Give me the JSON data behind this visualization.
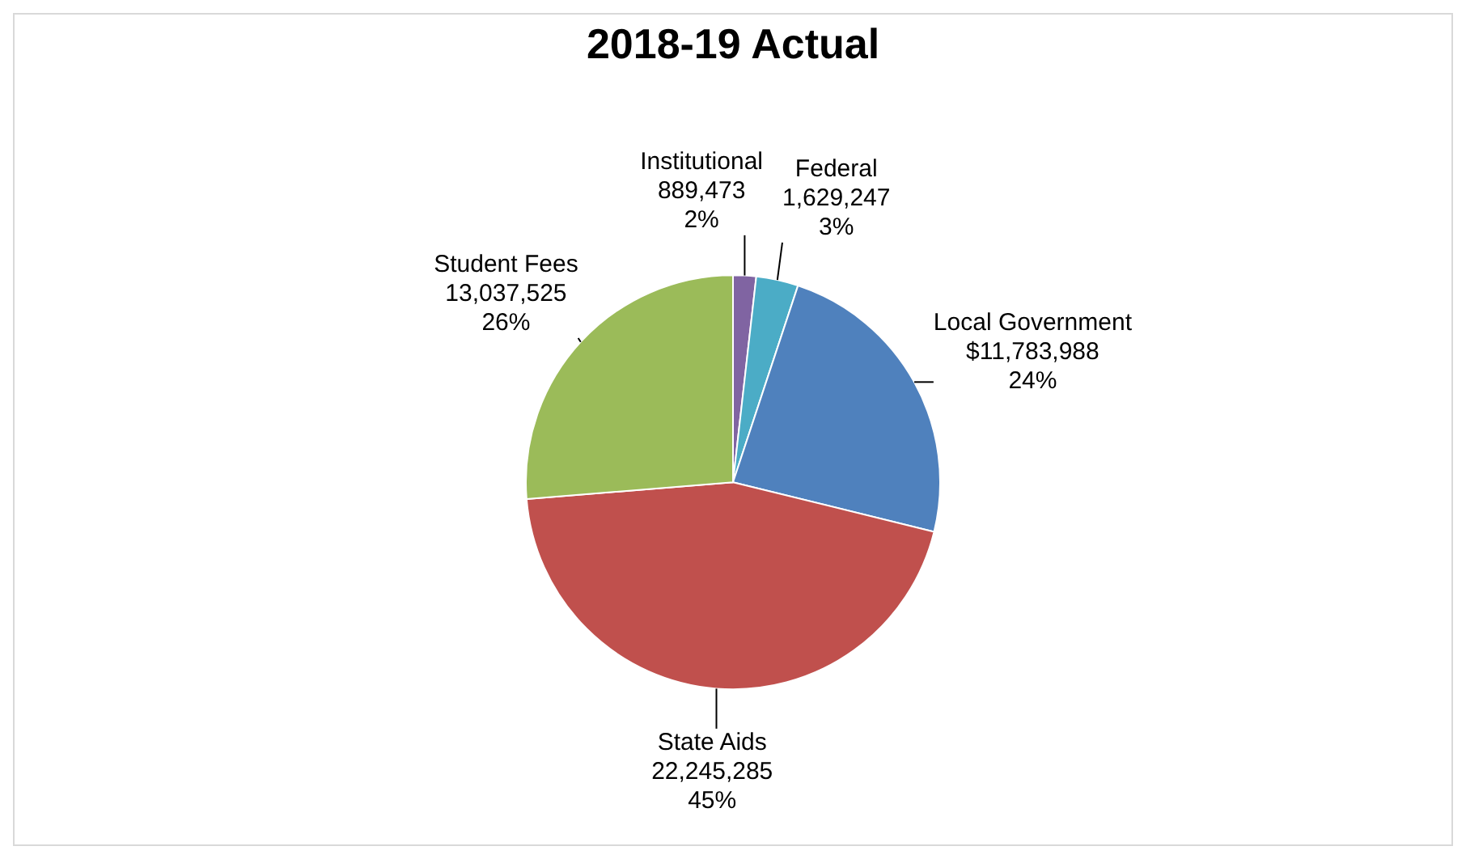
{
  "chart_data": {
    "type": "pie",
    "title": "2018-19 Actual",
    "legend": false,
    "categories": [
      "Institutional",
      "Federal",
      "Local Government",
      "State Aids",
      "Student Fees"
    ],
    "values": [
      889473,
      1629247,
      11783988,
      22245285,
      13037525
    ],
    "colors": [
      "#8064a2",
      "#4bacc6",
      "#4f81bd",
      "#c0504d",
      "#9bbb59"
    ],
    "value_labels": [
      "889,473\n2%",
      "1,629,247\n3%",
      "$11,783,988\n24%",
      "22,245,285\n45%",
      "13,037,525\n26%"
    ]
  }
}
